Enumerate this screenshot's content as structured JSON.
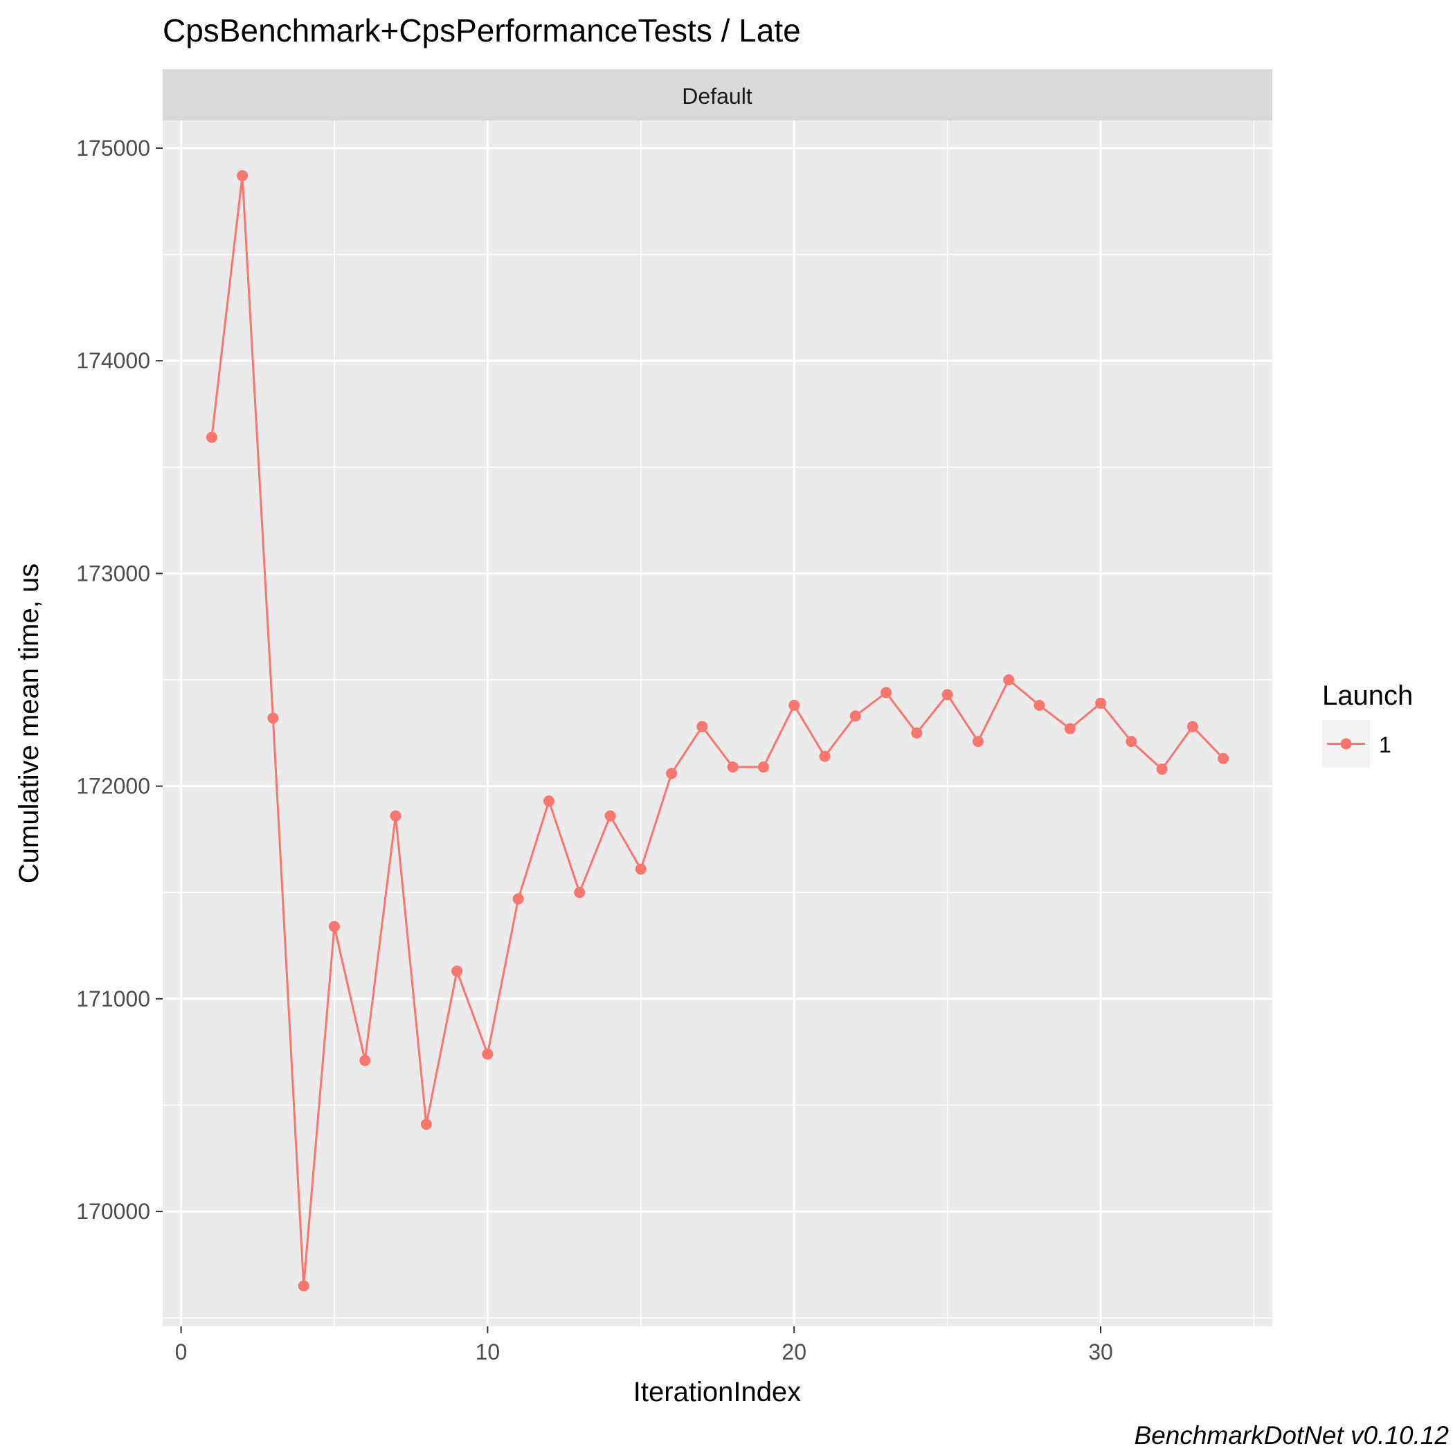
{
  "chart_data": {
    "type": "line",
    "title": "CpsBenchmark+CpsPerformanceTests / Late",
    "facet_label": "Default",
    "xlabel": "IterationIndex",
    "ylabel": "Cumulative mean time, us",
    "xlim": [
      -0.6,
      35.6
    ],
    "ylim": [
      169460,
      175130
    ],
    "x_ticks": [
      0,
      10,
      20,
      30
    ],
    "x_tick_labels": [
      "0",
      "10",
      "20",
      "30"
    ],
    "y_ticks": [
      170000,
      171000,
      172000,
      173000,
      174000,
      175000
    ],
    "y_tick_labels": [
      "170000",
      "171000",
      "172000",
      "173000",
      "174000",
      "175000"
    ],
    "grid": true,
    "legend": {
      "title": "Launch",
      "position": "right",
      "entries": [
        "1"
      ]
    },
    "caption": "BenchmarkDotNet v0.10.12",
    "series_color": "#F8766D",
    "series": [
      {
        "name": "1",
        "x": [
          1,
          2,
          3,
          4,
          5,
          6,
          7,
          8,
          9,
          10,
          11,
          12,
          13,
          14,
          15,
          16,
          17,
          18,
          19,
          20,
          21,
          22,
          23,
          24,
          25,
          26,
          27,
          28,
          29,
          30,
          31,
          32,
          33,
          34
        ],
        "y": [
          173640,
          174870,
          172320,
          169650,
          171340,
          170710,
          171860,
          170410,
          171130,
          170740,
          171470,
          171930,
          171500,
          171860,
          171610,
          172060,
          172280,
          172090,
          172090,
          172380,
          172140,
          172330,
          172440,
          172250,
          172430,
          172210,
          172500,
          172380,
          172270,
          172390,
          172210,
          172080,
          172280,
          172130
        ]
      }
    ]
  }
}
